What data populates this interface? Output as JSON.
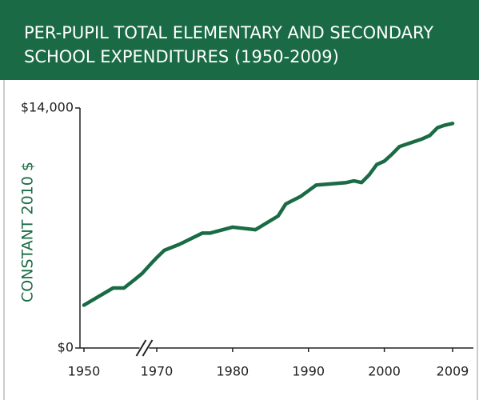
{
  "chart_data": {
    "type": "line",
    "title": [
      "PER-PUPIL TOTAL ELEMENTARY AND SECONDARY",
      "SCHOOL EXPENDITURES (1950-2009)"
    ],
    "ylabel": "CONSTANT 2010 $",
    "x": [
      1950,
      1958,
      1961,
      1964,
      1966,
      1969,
      1970,
      1971,
      1973,
      1976,
      1977,
      1980,
      1983,
      1986,
      1987,
      1989,
      1991,
      1995,
      1996,
      1997,
      1998,
      1999,
      2000,
      2001,
      2002,
      2003,
      2005,
      2006,
      2007,
      2008,
      2009
    ],
    "series": [
      {
        "name": "Per-pupil expenditure",
        "color": "#1a6b45",
        "values": [
          2500,
          3500,
          3500,
          4000,
          4350,
          5050,
          5270,
          5700,
          6050,
          6700,
          6700,
          7050,
          6900,
          7700,
          8400,
          8850,
          9500,
          9650,
          9750,
          9650,
          10100,
          10700,
          10900,
          11300,
          11750,
          11900,
          12200,
          12400,
          12850,
          13000,
          13100
        ]
      }
    ],
    "xlim": [
      1950,
      2009
    ],
    "x_compressed_range": [
      1950,
      1970
    ],
    "xticks": [
      1950,
      1970,
      1980,
      1990,
      2000,
      2009
    ],
    "ylim": [
      0,
      14000
    ],
    "yticks": [
      {
        "value": 0,
        "label": "$0"
      },
      {
        "value": 14000,
        "label": "$14,000"
      }
    ],
    "grid": false
  }
}
